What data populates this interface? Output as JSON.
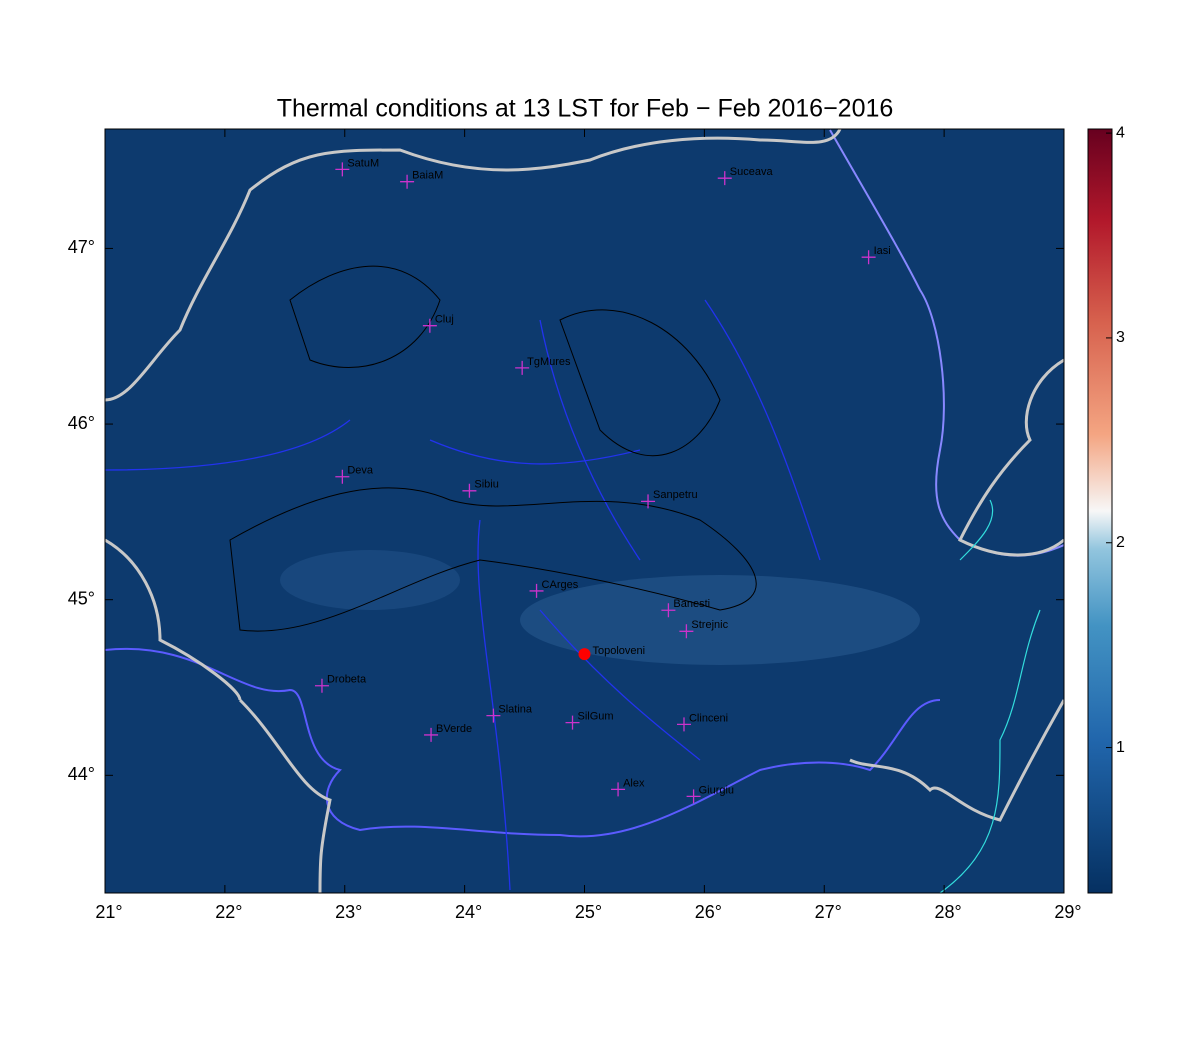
{
  "chart_data": {
    "type": "map",
    "title": "Thermal conditions at 13 LST for Feb − Feb  2016−2016",
    "background_color": "#0d3a6e",
    "xlim": [
      21,
      29
    ],
    "ylim": [
      43.33,
      47.68
    ],
    "xticks": [
      {
        "value": 21,
        "label": "21°"
      },
      {
        "value": 22,
        "label": "22°"
      },
      {
        "value": 23,
        "label": "23°"
      },
      {
        "value": 24,
        "label": "24°"
      },
      {
        "value": 25,
        "label": "25°"
      },
      {
        "value": 26,
        "label": "26°"
      },
      {
        "value": 27,
        "label": "27°"
      },
      {
        "value": 28,
        "label": "28°"
      },
      {
        "value": 29,
        "label": "29°"
      }
    ],
    "yticks": [
      {
        "value": 44,
        "label": "44°"
      },
      {
        "value": 45,
        "label": "45°"
      },
      {
        "value": 46,
        "label": "46°"
      },
      {
        "value": 47,
        "label": "47°"
      }
    ],
    "colorbar": {
      "lim": [
        0.29,
        4.02
      ],
      "ticks": [
        1,
        2,
        3,
        4
      ]
    },
    "station_color": "#cc33cc",
    "stations": [
      {
        "name": "SatuM",
        "lon": 22.98,
        "lat": 47.45
      },
      {
        "name": "BaiaM",
        "lon": 23.52,
        "lat": 47.38
      },
      {
        "name": "Suceava",
        "lon": 26.17,
        "lat": 47.4
      },
      {
        "name": "Iasi",
        "lon": 27.37,
        "lat": 46.95
      },
      {
        "name": "Cluj",
        "lon": 23.71,
        "lat": 46.56
      },
      {
        "name": "TgMures",
        "lon": 24.48,
        "lat": 46.32
      },
      {
        "name": "Deva",
        "lon": 22.98,
        "lat": 45.7
      },
      {
        "name": "Sibiu",
        "lon": 24.04,
        "lat": 45.62
      },
      {
        "name": "Sanpetru",
        "lon": 25.53,
        "lat": 45.56
      },
      {
        "name": "CArges",
        "lon": 24.6,
        "lat": 45.05
      },
      {
        "name": "Banesti",
        "lon": 25.7,
        "lat": 44.94
      },
      {
        "name": "Strejnic",
        "lon": 25.85,
        "lat": 44.82
      },
      {
        "name": "Drobeta",
        "lon": 22.81,
        "lat": 44.51
      },
      {
        "name": "Slatina",
        "lon": 24.24,
        "lat": 44.34
      },
      {
        "name": "SilGum",
        "lon": 24.9,
        "lat": 44.3
      },
      {
        "name": "Clinceni",
        "lon": 25.83,
        "lat": 44.29
      },
      {
        "name": "BVerde",
        "lon": 23.72,
        "lat": 44.23
      },
      {
        "name": "Alex",
        "lon": 25.28,
        "lat": 43.92
      },
      {
        "name": "Giurgiu",
        "lon": 25.91,
        "lat": 43.88
      }
    ],
    "site": {
      "name": "Topoloveni",
      "lon": 25.0,
      "lat": 44.69,
      "color": "#ff0000"
    }
  }
}
